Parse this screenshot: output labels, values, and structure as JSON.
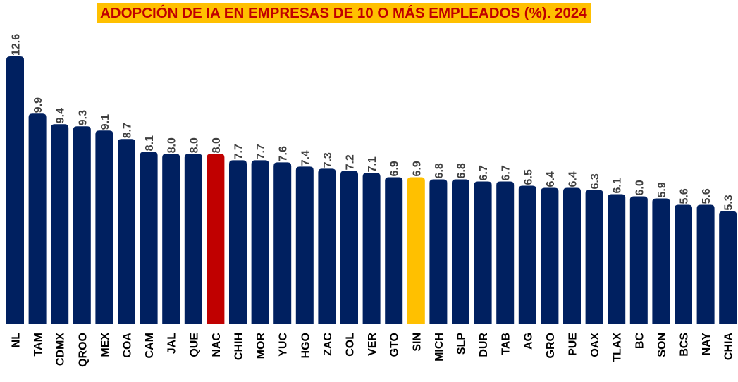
{
  "chart_data": {
    "type": "bar",
    "title": "ADOPCIÓN DE IA EN EMPRESAS DE 10 O MÁS EMPLEADOS (%). 2024",
    "xlabel": "",
    "ylabel": "",
    "ylim": [
      0,
      12.6
    ],
    "grid": false,
    "categories": [
      "NL",
      "TAM",
      "CDMX",
      "QROO",
      "MEX",
      "COA",
      "CAM",
      "JAL",
      "QUE",
      "NAC",
      "CHIH",
      "MOR",
      "YUC",
      "HGO",
      "ZAC",
      "COL",
      "VER",
      "GTO",
      "SIN",
      "MICH",
      "SLP",
      "DUR",
      "TAB",
      "AG",
      "GRO",
      "PUE",
      "OAX",
      "TLAX",
      "BC",
      "SON",
      "BCS",
      "NAY",
      "CHIA"
    ],
    "values": [
      12.6,
      9.9,
      9.4,
      9.3,
      9.1,
      8.7,
      8.1,
      8.0,
      8.0,
      8.0,
      7.7,
      7.7,
      7.6,
      7.4,
      7.3,
      7.2,
      7.1,
      6.9,
      6.9,
      6.8,
      6.8,
      6.7,
      6.7,
      6.5,
      6.4,
      6.4,
      6.3,
      6.1,
      6.0,
      5.9,
      5.6,
      5.6,
      5.3
    ],
    "colors": {
      "default": "#002060",
      "NAC": "#C00000",
      "SIN": "#FFC000",
      "title_bg": "#FFC000",
      "title_text": "#C00000",
      "value_label": "#404040"
    }
  }
}
